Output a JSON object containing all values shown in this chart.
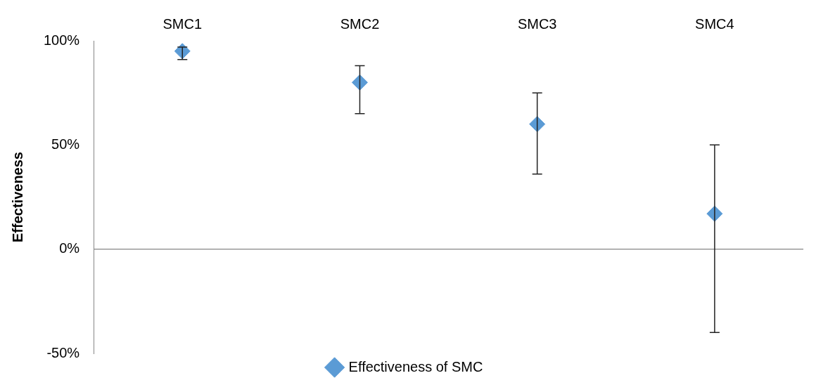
{
  "chart_data": {
    "type": "scatter",
    "categories": [
      "SMC1",
      "SMC2",
      "SMC3",
      "SMC4"
    ],
    "series": [
      {
        "name": "Effectiveness of SMC",
        "color": "#5b9bd5",
        "values": [
          95,
          80,
          60,
          17
        ],
        "errors": [
          [
            91,
            97
          ],
          [
            65,
            88
          ],
          [
            36,
            75
          ],
          [
            -40,
            50
          ]
        ]
      }
    ],
    "ylabel": "Effectiveness",
    "ylim": [
      -50,
      100
    ],
    "yticks": [
      {
        "value": -50,
        "label": "-50%"
      },
      {
        "value": 0,
        "label": "0%"
      },
      {
        "value": 50,
        "label": "50%"
      },
      {
        "value": 100,
        "label": "100%"
      }
    ],
    "marker": "diamond",
    "legend": "bottom"
  }
}
